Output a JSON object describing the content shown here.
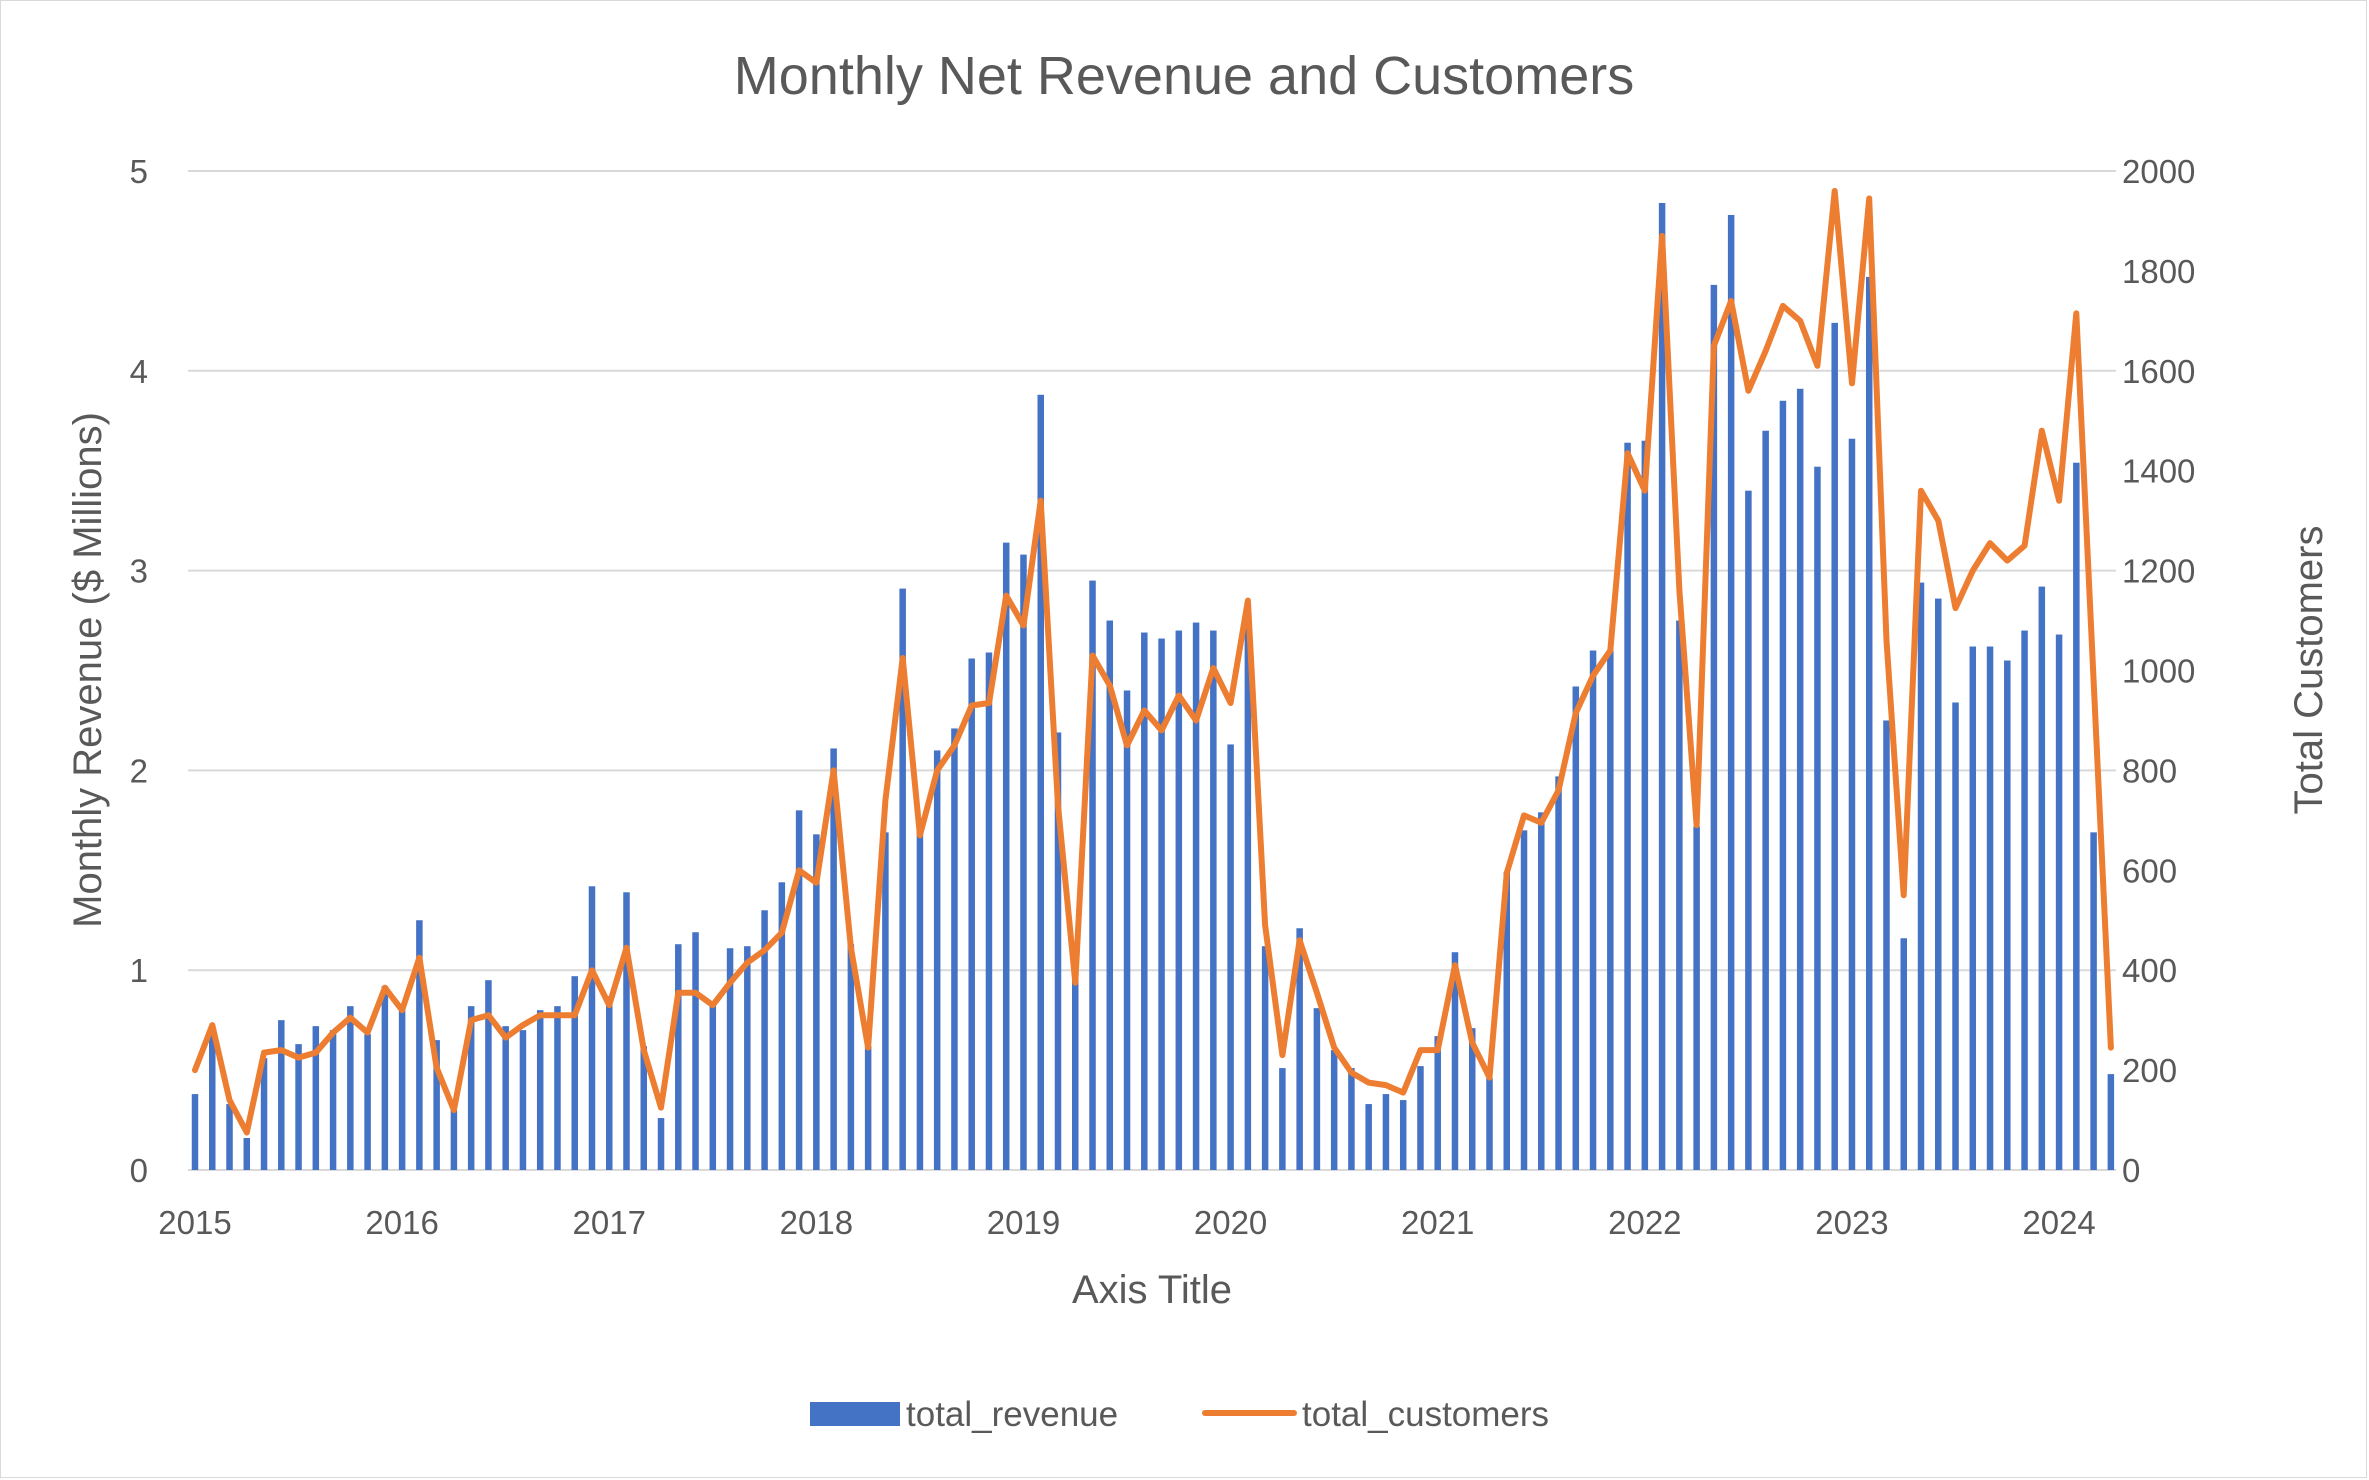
{
  "chart_data": {
    "type": "bar",
    "title": "Monthly Net Revenue and Customers",
    "xlabel": "Axis Title",
    "ylabel": "Monthly Revenue ($ Millions)",
    "y2label": "Total Customers",
    "ylim": [
      0,
      5
    ],
    "y2lim": [
      0,
      2000
    ],
    "yticks": [
      "0",
      "1",
      "2",
      "3",
      "4",
      "5"
    ],
    "y2ticks": [
      "0",
      "200",
      "400",
      "600",
      "800",
      "1000",
      "1200",
      "1400",
      "1600",
      "1800",
      "2000"
    ],
    "xticks": [
      "2015",
      "2016",
      "2017",
      "2018",
      "2019",
      "2020",
      "2021",
      "2022",
      "2023",
      "2024"
    ],
    "x_start": "2015-01",
    "x_end": "2024-03",
    "grid": true,
    "legend_position": "bottom",
    "colors": {
      "revenue": "#4472c4",
      "customers": "#ed7d31",
      "grid": "#d9d9d9",
      "text": "#595959"
    },
    "series": [
      {
        "name": "total_revenue",
        "type": "bar",
        "axis": "left",
        "values": [
          0.38,
          0.68,
          0.33,
          0.16,
          0.56,
          0.75,
          0.63,
          0.72,
          0.7,
          0.82,
          0.68,
          0.92,
          0.8,
          1.25,
          0.65,
          0.3,
          0.82,
          0.95,
          0.72,
          0.7,
          0.8,
          0.82,
          0.97,
          1.42,
          0.87,
          1.39,
          0.62,
          0.26,
          1.13,
          1.19,
          0.83,
          1.11,
          1.12,
          1.3,
          1.44,
          1.8,
          1.68,
          2.11,
          1.13,
          0.62,
          1.69,
          2.91,
          1.7,
          2.1,
          2.21,
          2.56,
          2.59,
          3.14,
          3.08,
          3.88,
          2.19,
          0.97,
          2.95,
          2.75,
          2.4,
          2.69,
          2.66,
          2.7,
          2.74,
          2.7,
          2.13,
          2.75,
          1.12,
          0.51,
          1.21,
          0.81,
          0.6,
          0.51,
          0.33,
          0.38,
          0.35,
          0.52,
          0.67,
          1.09,
          0.71,
          0.46,
          1.49,
          1.7,
          1.79,
          1.97,
          2.42,
          2.6,
          2.6,
          3.64,
          3.65,
          4.84,
          2.75,
          1.72,
          4.43,
          4.78,
          3.4,
          3.7,
          3.85,
          3.91,
          3.52,
          4.24,
          3.66,
          4.47,
          2.25,
          1.16,
          2.94,
          2.86,
          2.34,
          2.62,
          2.62,
          2.55,
          2.7,
          2.92,
          2.68,
          3.54,
          1.69,
          0.48
        ]
      },
      {
        "name": "total_customers",
        "type": "line",
        "axis": "right",
        "values": [
          200,
          290,
          140,
          75,
          235,
          240,
          225,
          235,
          275,
          305,
          275,
          365,
          320,
          425,
          205,
          120,
          300,
          310,
          265,
          290,
          310,
          310,
          310,
          400,
          330,
          445,
          240,
          125,
          355,
          355,
          330,
          375,
          415,
          440,
          475,
          600,
          575,
          800,
          445,
          245,
          740,
          1025,
          670,
          800,
          850,
          930,
          935,
          1150,
          1090,
          1340,
          730,
          375,
          1030,
          970,
          850,
          920,
          880,
          950,
          900,
          1005,
          935,
          1140,
          490,
          230,
          460,
          355,
          245,
          195,
          175,
          170,
          155,
          240,
          240,
          410,
          255,
          185,
          595,
          710,
          695,
          760,
          915,
          990,
          1040,
          1435,
          1360,
          1870,
          1160,
          690,
          1650,
          1740,
          1560,
          1640,
          1730,
          1700,
          1610,
          1960,
          1575,
          1945,
          1060,
          550,
          1360,
          1300,
          1125,
          1200,
          1255,
          1220,
          1250,
          1480,
          1340,
          1715,
          980,
          245
        ]
      }
    ]
  }
}
